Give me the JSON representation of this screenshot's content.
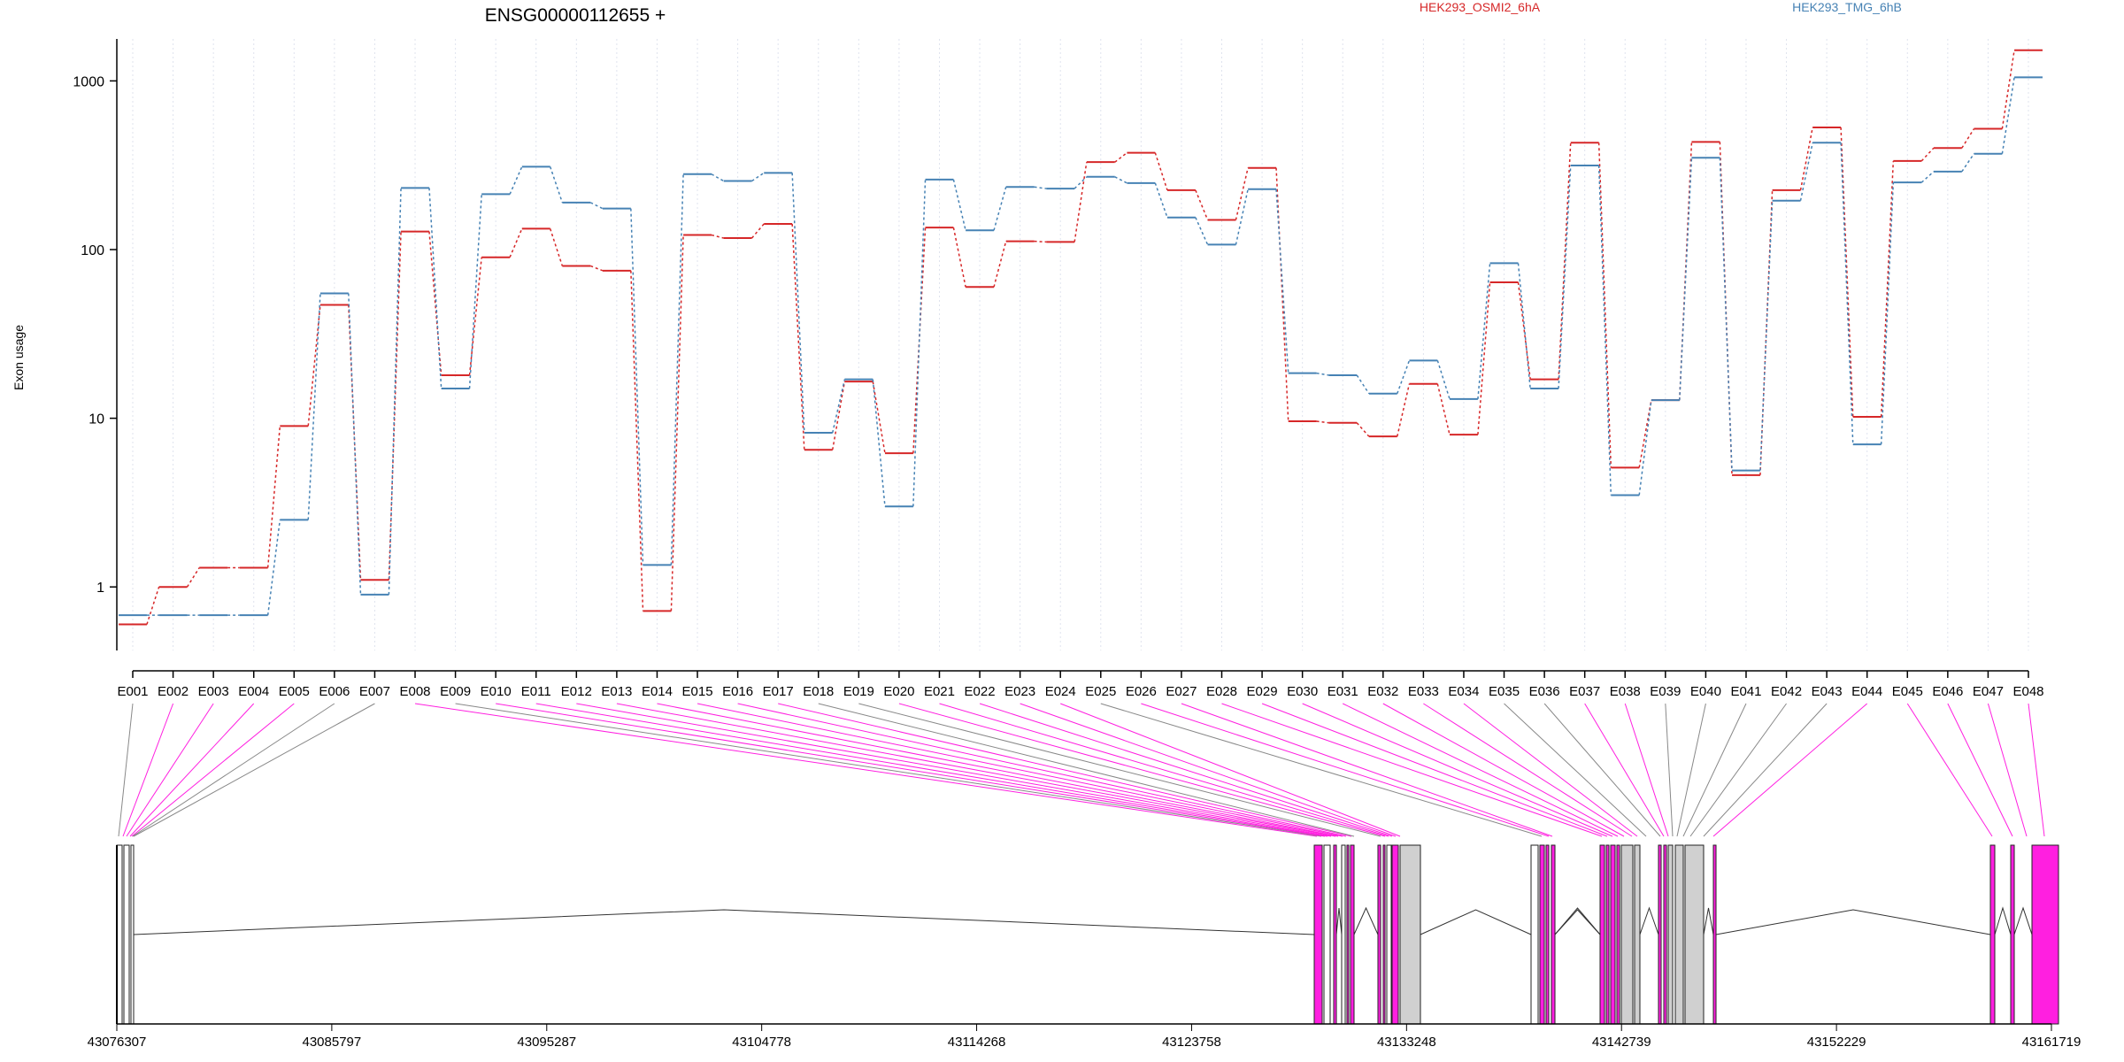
{
  "chart_data": {
    "type": "line",
    "title": "ENSG00000112655 +",
    "ylabel": "Exon usage",
    "xlabel": "",
    "y_scale": "log",
    "ylim": [
      0.42,
      2100
    ],
    "y_ticks": [
      1,
      10,
      100,
      1000
    ],
    "y_tick_labels": [
      "1",
      "10",
      "100",
      "1000"
    ],
    "grid": true,
    "legend_placement": "top-right",
    "categories": [
      "E001",
      "E002",
      "E003",
      "E004",
      "E005",
      "E006",
      "E007",
      "E008",
      "E009",
      "E010",
      "E011",
      "E012",
      "E013",
      "E014",
      "E015",
      "E016",
      "E017",
      "E018",
      "E019",
      "E020",
      "E021",
      "E022",
      "E023",
      "E024",
      "E025",
      "E026",
      "E027",
      "E028",
      "E029",
      "E030",
      "E031",
      "E032",
      "E033",
      "E034",
      "E035",
      "E036",
      "E037",
      "E038",
      "E039",
      "E040",
      "E041",
      "E042",
      "E043",
      "E044",
      "E045",
      "E046",
      "E047",
      "E048"
    ],
    "series": [
      {
        "name": "HEK293_OSMI2_6hA",
        "color": "#d62728",
        "values": [
          0.6,
          1,
          1.3,
          1.3,
          9,
          47,
          1.1,
          128,
          18,
          90,
          133,
          80,
          75,
          0.72,
          122,
          117,
          142,
          6.5,
          16.5,
          6.2,
          135,
          60,
          112,
          111,
          330,
          375,
          225,
          150,
          305,
          9.6,
          9.4,
          7.8,
          16,
          8,
          64,
          17,
          430,
          5.1,
          12.8,
          435,
          4.6,
          225,
          530,
          10.2,
          335,
          400,
          520,
          1520
        ]
      },
      {
        "name": "HEK293_TMG_6hB",
        "color": "#4682b4",
        "values": [
          0.68,
          0.68,
          0.68,
          0.68,
          2.5,
          55,
          0.9,
          232,
          15,
          213,
          310,
          190,
          175,
          1.35,
          280,
          255,
          285,
          8.2,
          17,
          3,
          260,
          130,
          235,
          230,
          270,
          248,
          155,
          107,
          228,
          18.5,
          18,
          14,
          22,
          13,
          83,
          15,
          315,
          3.5,
          12.8,
          350,
          4.9,
          195,
          430,
          7,
          250,
          290,
          370,
          1050
        ]
      }
    ],
    "gene_model": {
      "coordinate_labels": [
        "43076307",
        "43085797",
        "43095287",
        "43104778",
        "43114268",
        "43123758",
        "43133248",
        "43142739",
        "43152229",
        "43161719"
      ],
      "exon_colors": {
        "differential": "#ff1fe0",
        "non_differential": "#d0d0d0"
      }
    }
  }
}
